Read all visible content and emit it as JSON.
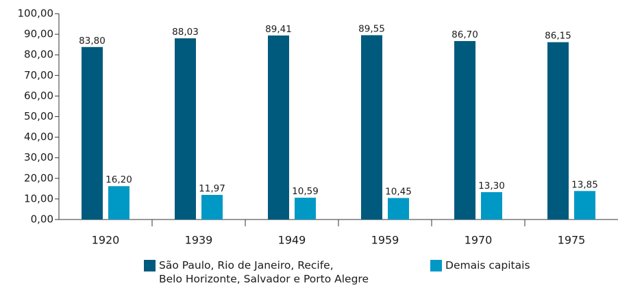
{
  "chart_data": {
    "type": "bar",
    "categories": [
      "1920",
      "1939",
      "1949",
      "1959",
      "1970",
      "1975"
    ],
    "series": [
      {
        "name": "São Paulo, Rio de Janeiro, Recife,\nBelo Horizonte, Salvador e Porto Alegre",
        "color": "#005a7d",
        "values": [
          83.8,
          88.03,
          89.41,
          89.55,
          86.7,
          86.15
        ],
        "value_labels": [
          "83,80",
          "88,03",
          "89,41",
          "89,55",
          "86,70",
          "86,15"
        ]
      },
      {
        "name": "Demais capitais",
        "color": "#0099c6",
        "values": [
          16.2,
          11.97,
          10.59,
          10.45,
          13.3,
          13.85
        ],
        "value_labels": [
          "16,20",
          "11,97",
          "10,59",
          "10,45",
          "13,30",
          "13,85"
        ]
      }
    ],
    "ylim": [
      0,
      100
    ],
    "yticks": [
      {
        "value": 0,
        "label": "0,00"
      },
      {
        "value": 10,
        "label": "10,00"
      },
      {
        "value": 20,
        "label": "20,00"
      },
      {
        "value": 30,
        "label": "30,00"
      },
      {
        "value": 40,
        "label": "40,00"
      },
      {
        "value": 50,
        "label": "50,00"
      },
      {
        "value": 60,
        "label": "60,00"
      },
      {
        "value": 70,
        "label": "70,00"
      },
      {
        "value": 80,
        "label": "80,00"
      },
      {
        "value": 90,
        "label": "90,00"
      },
      {
        "value": 100,
        "label": "100,00"
      }
    ],
    "grid": false,
    "legend": "bottom"
  }
}
